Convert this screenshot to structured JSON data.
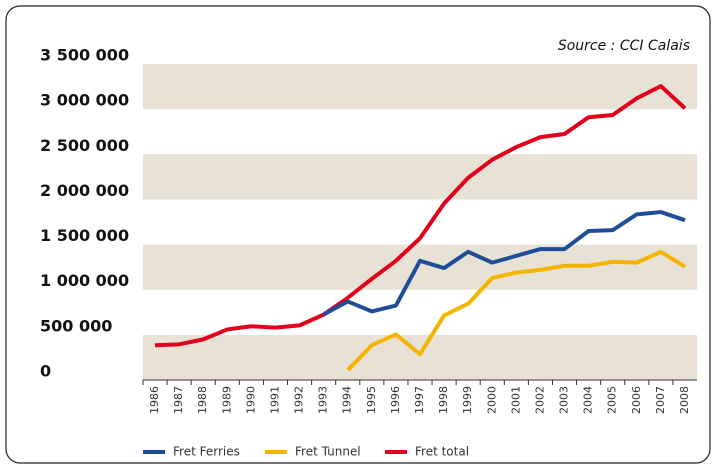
{
  "chart_data": {
    "type": "line",
    "annotation": "Source : CCI Calais",
    "categories": [
      "1986",
      "1987",
      "1988",
      "1989",
      "1990",
      "1991",
      "1992",
      "1993",
      "1994",
      "1995",
      "1996",
      "1997",
      "1998",
      "1999",
      "2000",
      "2001",
      "2002",
      "2003",
      "2004",
      "2005",
      "2006",
      "2007",
      "2008"
    ],
    "series": [
      {
        "name": "Fret Ferries",
        "color": "#1f4e96",
        "values": [
          null,
          null,
          null,
          null,
          null,
          null,
          null,
          725000,
          870000,
          760000,
          825000,
          1320000,
          1240000,
          1420000,
          1300000,
          1375000,
          1450000,
          1450000,
          1650000,
          1660000,
          1835000,
          1860000,
          1770000
        ]
      },
      {
        "name": "Fret Tunnel",
        "color": "#f5b400",
        "values": [
          null,
          null,
          null,
          null,
          null,
          null,
          null,
          null,
          110000,
          385000,
          505000,
          285000,
          715000,
          845000,
          1130000,
          1190000,
          1220000,
          1265000,
          1265000,
          1310000,
          1300000,
          1420000,
          1255000
        ]
      },
      {
        "name": "Fret total",
        "color": "#e3001b",
        "values": [
          385000,
          395000,
          450000,
          560000,
          595000,
          580000,
          605000,
          725000,
          910000,
          1120000,
          1320000,
          1570000,
          1955000,
          2240000,
          2440000,
          2580000,
          2690000,
          2725000,
          2910000,
          2935000,
          3120000,
          3255000,
          3010000
        ]
      }
    ],
    "ylim": [
      0,
      3500000
    ],
    "yticks": [
      0,
      {
        "value": 500000,
        "label": "500 000"
      },
      {
        "value": 1000000,
        "label": "1 000 000"
      },
      {
        "value": 1500000,
        "label": "1 500 000"
      },
      {
        "value": 2000000,
        "label": "2 000 000"
      },
      {
        "value": 2500000,
        "label": "2 500 000"
      },
      {
        "value": 3000000,
        "label": "3 000 000"
      },
      {
        "value": 3500000,
        "label": "3 500 000"
      }
    ],
    "legend": "bottom"
  }
}
